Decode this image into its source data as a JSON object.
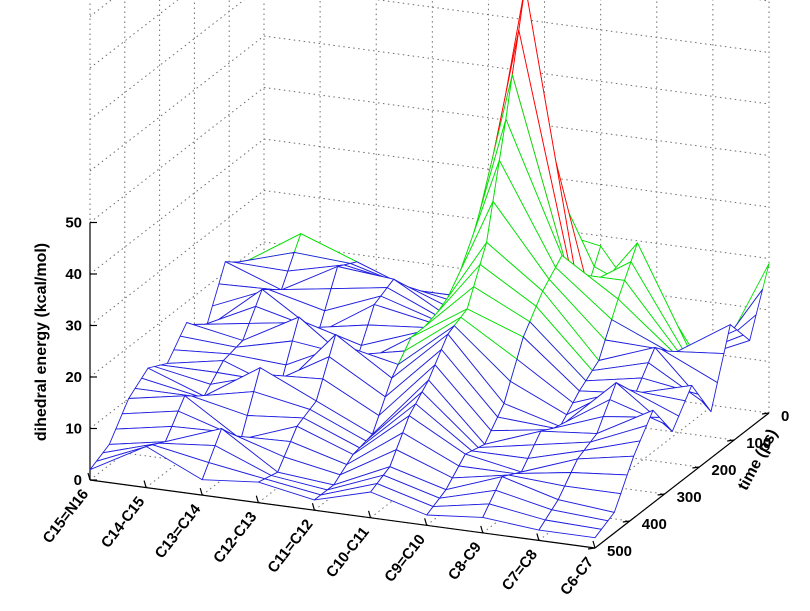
{
  "chart_data": {
    "type": "surface",
    "title": "",
    "zlabel": "dihedral energy (kcal/mol)",
    "ylabel": "time (ps)",
    "xlabel": "",
    "zlim": [
      0,
      50
    ],
    "z_ticks": [
      "0",
      "10",
      "20",
      "30",
      "40",
      "50"
    ],
    "time_ticks": [
      "0",
      "100",
      "200",
      "300",
      "400",
      "500"
    ],
    "time_values": [
      0,
      100,
      200,
      300,
      400,
      500
    ],
    "dihedrals": [
      "C15=N16",
      "C14-C15",
      "C13=C14",
      "C12-C13",
      "C11=C12",
      "C10-C11",
      "C9=C10",
      "C8-C9",
      "C7=C8",
      "C6-C7"
    ],
    "grid": true,
    "colors": {
      "low": "#2020e0",
      "mid": "#00e000",
      "high": "#ff0000"
    },
    "energy": [
      [
        2,
        8,
        3,
        4,
        2,
        5,
        2,
        3,
        2,
        2
      ],
      [
        4,
        6,
        10,
        3,
        2,
        7,
        4,
        8,
        5,
        4
      ],
      [
        10,
        12,
        5,
        9,
        5,
        14,
        8,
        6,
        10,
        12
      ],
      [
        13,
        9,
        16,
        11,
        6,
        18,
        7,
        11,
        12,
        18
      ],
      [
        11,
        13,
        9,
        21,
        14,
        24,
        12,
        9,
        19,
        11
      ],
      [
        16,
        14,
        20,
        12,
        19,
        26,
        22,
        13,
        14,
        17
      ],
      [
        12,
        21,
        14,
        21,
        19,
        36,
        28,
        16,
        20,
        9
      ],
      [
        22,
        18,
        24,
        23,
        17,
        57,
        32,
        25,
        16,
        23
      ],
      [
        19,
        26,
        22,
        18,
        18,
        80,
        19,
        33,
        12,
        17
      ],
      [
        11,
        8,
        14,
        7,
        22,
        30,
        28,
        14,
        7,
        29
      ]
    ]
  }
}
